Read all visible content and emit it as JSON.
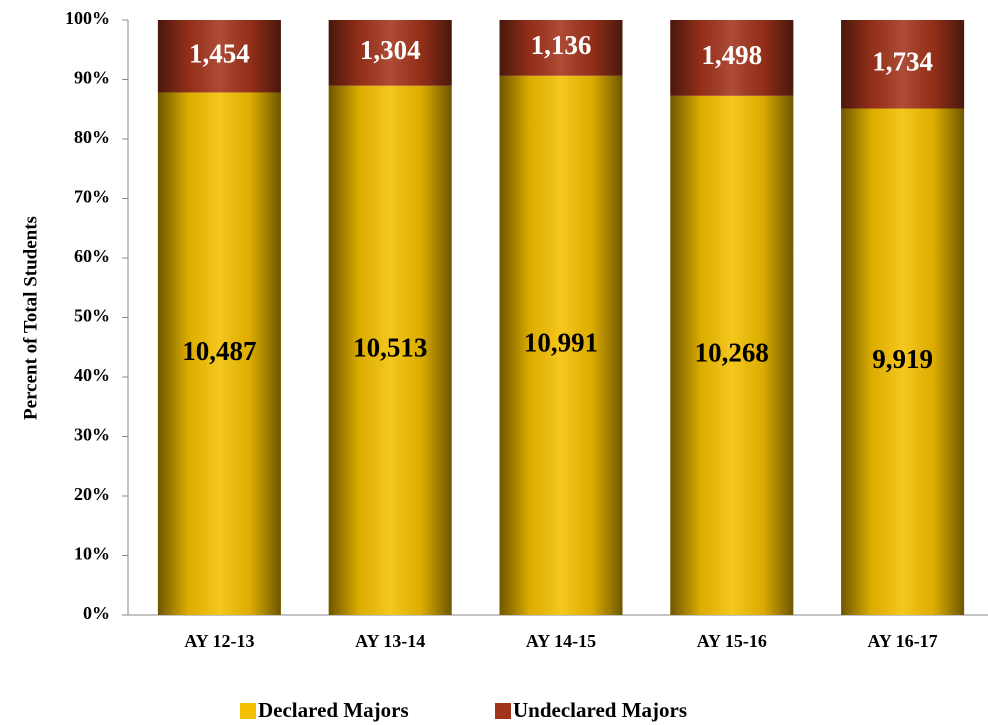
{
  "chart_data": {
    "type": "bar",
    "stacked": "percent",
    "y_label": "Percent of Total Students",
    "categories": [
      "AY 12-13",
      "AY 13-14",
      "AY 14-15",
      "AY 15-16",
      "AY 16-17"
    ],
    "series": [
      {
        "name": "Declared Majors",
        "color": "#f5c000",
        "label_color": "#000000",
        "values": [
          10487,
          10513,
          10991,
          10268,
          9919
        ],
        "value_labels": [
          "10,487",
          "10,513",
          "10,991",
          "10,268",
          "9,919"
        ]
      },
      {
        "name": "Undeclared Majors",
        "color": "#a3341c",
        "label_color": "#ffffff",
        "values": [
          1454,
          1304,
          1136,
          1498,
          1734
        ],
        "value_labels": [
          "1,454",
          "1,304",
          "1,136",
          "1,498",
          "1,734"
        ]
      }
    ],
    "ylim": [
      0,
      100
    ],
    "yticks": [
      {
        "value": 0,
        "label": "0%"
      },
      {
        "value": 10,
        "label": "10%"
      },
      {
        "value": 20,
        "label": "20%"
      },
      {
        "value": 30,
        "label": "30%"
      },
      {
        "value": 40,
        "label": "40%"
      },
      {
        "value": 50,
        "label": "50%"
      },
      {
        "value": 60,
        "label": "60%"
      },
      {
        "value": 70,
        "label": "70%"
      },
      {
        "value": 80,
        "label": "80%"
      },
      {
        "value": 90,
        "label": "90%"
      },
      {
        "value": 100,
        "label": "100%"
      }
    ],
    "legend": "bottom"
  }
}
